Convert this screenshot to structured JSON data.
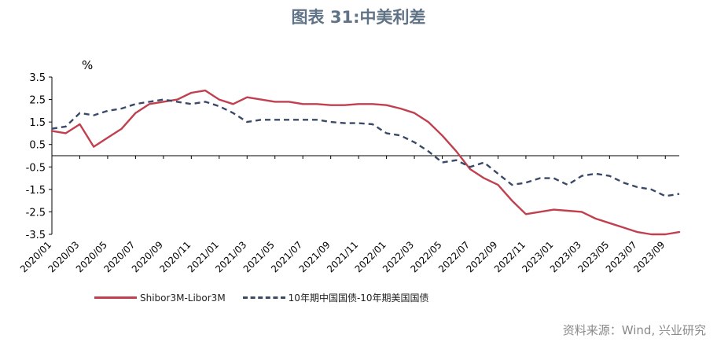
{
  "title": "图表 31:中美利差",
  "unit": "%",
  "source": "资料来源：Wind, 兴业研究",
  "chart_data": {
    "type": "line",
    "title": "图表 31:中美利差",
    "ylabel": "%",
    "ylim": [
      -3.5,
      3.5
    ],
    "yticks": [
      3.5,
      2.5,
      1.5,
      0.5,
      -0.5,
      -1.5,
      -2.5,
      -3.5
    ],
    "x_tick_labels": [
      "2020/01",
      "2020/03",
      "2020/05",
      "2020/07",
      "2020/09",
      "2020/11",
      "2021/01",
      "2021/03",
      "2021/05",
      "2021/07",
      "2021/09",
      "2021/11",
      "2022/01",
      "2022/03",
      "2022/05",
      "2022/07",
      "2022/09",
      "2022/11",
      "2023/01",
      "2023/03",
      "2023/05",
      "2023/07",
      "2023/09"
    ],
    "x": [
      "2020/01",
      "2020/02",
      "2020/03",
      "2020/04",
      "2020/05",
      "2020/06",
      "2020/07",
      "2020/08",
      "2020/09",
      "2020/10",
      "2020/11",
      "2020/12",
      "2021/01",
      "2021/02",
      "2021/03",
      "2021/04",
      "2021/05",
      "2021/06",
      "2021/07",
      "2021/08",
      "2021/09",
      "2021/10",
      "2021/11",
      "2021/12",
      "2022/01",
      "2022/02",
      "2022/03",
      "2022/04",
      "2022/05",
      "2022/06",
      "2022/07",
      "2022/08",
      "2022/09",
      "2022/10",
      "2022/11",
      "2022/12",
      "2023/01",
      "2023/02",
      "2023/03",
      "2023/04",
      "2023/05",
      "2023/06",
      "2023/07",
      "2023/08",
      "2023/09",
      "2023/10"
    ],
    "series": [
      {
        "name": "Shibor3M-Libor3M",
        "color": "#c04050",
        "style": "solid",
        "values": [
          1.1,
          1.0,
          1.4,
          0.4,
          0.8,
          1.2,
          1.9,
          2.3,
          2.4,
          2.5,
          2.8,
          2.9,
          2.5,
          2.3,
          2.6,
          2.5,
          2.4,
          2.4,
          2.3,
          2.3,
          2.25,
          2.25,
          2.3,
          2.3,
          2.25,
          2.1,
          1.9,
          1.5,
          0.9,
          0.2,
          -0.6,
          -1.0,
          -1.3,
          -2.0,
          -2.6,
          -2.5,
          -2.4,
          -2.45,
          -2.5,
          -2.8,
          -3.0,
          -3.2,
          -3.4,
          -3.5,
          -3.5,
          -3.4
        ]
      },
      {
        "name": "10年期中国国债-10年期美国国债",
        "color": "#3a4a66",
        "style": "dashed",
        "values": [
          1.2,
          1.3,
          1.9,
          1.8,
          2.0,
          2.1,
          2.3,
          2.4,
          2.5,
          2.4,
          2.3,
          2.4,
          2.2,
          1.9,
          1.5,
          1.6,
          1.6,
          1.6,
          1.6,
          1.6,
          1.5,
          1.45,
          1.45,
          1.4,
          1.0,
          0.9,
          0.6,
          0.2,
          -0.3,
          -0.2,
          -0.5,
          -0.3,
          -0.8,
          -1.3,
          -1.2,
          -1.0,
          -1.0,
          -1.3,
          -0.9,
          -0.8,
          -0.9,
          -1.2,
          -1.4,
          -1.5,
          -1.8,
          -1.7
        ]
      }
    ],
    "grid": false,
    "legend": "bottom"
  }
}
